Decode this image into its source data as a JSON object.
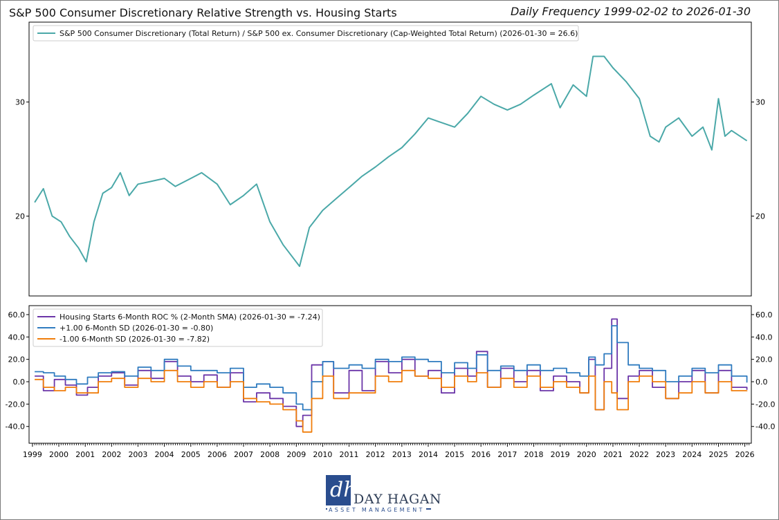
{
  "header": {
    "title": "S&P 500 Consumer Discretionary Relative Strength vs. Housing Starts",
    "subtitle": "Daily Frequency 1999-02-02 to 2026-01-30"
  },
  "logo": {
    "name": "DAY HAGAN",
    "tagline": "ASSET MANAGEMENT",
    "mark": "dh"
  },
  "chart_data": [
    {
      "type": "line",
      "xlim": [
        "1998-11-15",
        "2026-04-01"
      ],
      "ylim": [
        13,
        37
      ],
      "yticks": [
        20,
        30
      ],
      "ytick_labels": [
        "20",
        "30"
      ],
      "y_axis_both_sides": true,
      "grid": false,
      "legend_position": "upper-left",
      "series": [
        {
          "name": "S&P 500 Consumer Discretionary (Total Return) / S&P 500 ex. Consumer Discretionary (Cap-Weighted Total Return) (2026-01-30 = 26.6)",
          "color": "#4aa8a8",
          "x": [
            "1999-02-01",
            "1999-06-01",
            "1999-10-01",
            "2000-02-01",
            "2000-06-01",
            "2000-10-01",
            "2001-01-15",
            "2001-05-01",
            "2001-09-01",
            "2002-01-01",
            "2002-05-01",
            "2002-09-01",
            "2003-01-01",
            "2003-06-01",
            "2004-01-01",
            "2004-06-01",
            "2005-01-01",
            "2005-06-01",
            "2006-01-01",
            "2006-07-01",
            "2007-01-01",
            "2007-07-01",
            "2008-01-01",
            "2008-07-01",
            "2009-02-15",
            "2009-07-01",
            "2010-01-01",
            "2010-07-01",
            "2011-01-01",
            "2011-07-01",
            "2012-01-01",
            "2012-07-01",
            "2013-01-01",
            "2013-07-01",
            "2014-01-01",
            "2014-07-01",
            "2015-01-01",
            "2015-07-01",
            "2016-01-01",
            "2016-07-01",
            "2017-01-01",
            "2017-07-01",
            "2018-01-01",
            "2018-09-01",
            "2019-01-01",
            "2019-07-01",
            "2020-01-01",
            "2020-04-01",
            "2020-09-01",
            "2021-01-01",
            "2021-07-01",
            "2022-01-01",
            "2022-06-01",
            "2022-10-01",
            "2023-01-01",
            "2023-07-01",
            "2024-01-01",
            "2024-06-01",
            "2024-10-01",
            "2025-01-01",
            "2025-04-01",
            "2025-07-01",
            "2026-01-30"
          ],
          "values": [
            21.2,
            22.4,
            20.0,
            19.5,
            18.2,
            17.2,
            16.0,
            19.5,
            22.0,
            22.5,
            23.8,
            21.8,
            22.8,
            23.0,
            23.3,
            22.6,
            23.3,
            23.8,
            22.8,
            21.0,
            21.8,
            22.8,
            19.5,
            17.5,
            15.6,
            19.0,
            20.5,
            21.5,
            22.5,
            23.5,
            24.3,
            25.2,
            26.0,
            27.2,
            28.6,
            28.2,
            27.8,
            29.0,
            30.5,
            29.8,
            29.3,
            29.8,
            30.6,
            31.6,
            29.5,
            31.5,
            30.5,
            34.0,
            34.0,
            33.0,
            31.8,
            30.3,
            27.0,
            26.5,
            27.8,
            28.6,
            27.0,
            27.8,
            25.8,
            30.3,
            27.0,
            27.5,
            26.6
          ]
        }
      ]
    },
    {
      "type": "line",
      "xlim": [
        "1998-11-15",
        "2026-04-01"
      ],
      "ylim": [
        -55,
        68
      ],
      "yticks": [
        -40,
        -20,
        0,
        20,
        40,
        60
      ],
      "ytick_labels": [
        "-40.0",
        "-20.0",
        "0.0",
        "20.0",
        "40.0",
        "60.0"
      ],
      "y_axis_both_sides": true,
      "grid": false,
      "legend_position": "upper-left",
      "x_tick_labels": [
        "1999",
        "2000",
        "2001",
        "2002",
        "2003",
        "2004",
        "2005",
        "2006",
        "2007",
        "2008",
        "2009",
        "2010",
        "2011",
        "2012",
        "2013",
        "2014",
        "2015",
        "2016",
        "2017",
        "2018",
        "2019",
        "2020",
        "2021",
        "2022",
        "2023",
        "2024",
        "2025",
        "2026"
      ],
      "series": [
        {
          "name": "Housing Starts 6-Month ROC % (2-Month SMA) (2026-01-30 = -7.24)",
          "color": "#6b35a8",
          "x": [
            "1999-02-01",
            "1999-06-01",
            "1999-11-01",
            "2000-04-01",
            "2000-09-01",
            "2001-02-01",
            "2001-07-01",
            "2002-01-01",
            "2002-07-01",
            "2003-01-01",
            "2003-07-01",
            "2004-01-01",
            "2004-07-01",
            "2005-01-01",
            "2005-07-01",
            "2006-01-01",
            "2006-07-01",
            "2007-01-01",
            "2007-07-01",
            "2008-01-01",
            "2008-07-01",
            "2009-01-01",
            "2009-04-01",
            "2009-08-01",
            "2010-01-01",
            "2010-06-01",
            "2011-01-01",
            "2011-07-01",
            "2012-01-01",
            "2012-07-01",
            "2013-01-01",
            "2013-07-01",
            "2014-01-01",
            "2014-07-01",
            "2015-01-01",
            "2015-07-01",
            "2015-11-01",
            "2016-04-01",
            "2016-10-01",
            "2017-04-01",
            "2017-10-01",
            "2018-04-01",
            "2018-10-01",
            "2019-04-01",
            "2019-10-01",
            "2020-02-01",
            "2020-05-01",
            "2020-09-01",
            "2020-12-15",
            "2021-03-01",
            "2021-08-01",
            "2022-01-01",
            "2022-07-01",
            "2023-01-01",
            "2023-07-01",
            "2024-01-01",
            "2024-07-01",
            "2025-01-01",
            "2025-07-01",
            "2026-01-30"
          ],
          "values": [
            5,
            -8,
            2,
            -3,
            -12,
            -5,
            5,
            8,
            -3,
            10,
            3,
            18,
            5,
            0,
            6,
            -5,
            8,
            -18,
            -10,
            -15,
            -22,
            -40,
            -30,
            15,
            18,
            -10,
            10,
            -8,
            18,
            8,
            20,
            5,
            10,
            -10,
            12,
            5,
            27,
            -5,
            12,
            0,
            10,
            -8,
            5,
            0,
            -10,
            20,
            -25,
            12,
            56,
            -15,
            5,
            10,
            -5,
            -15,
            0,
            10,
            -10,
            10,
            -5,
            -7.24
          ]
        },
        {
          "name": "+1.00 6-Month SD (2026-01-30 = -0.80)",
          "color": "#2f7bbf",
          "x": [
            "1999-02-01",
            "1999-06-01",
            "1999-11-01",
            "2000-04-01",
            "2000-09-01",
            "2001-02-01",
            "2001-07-01",
            "2002-01-01",
            "2002-07-01",
            "2003-01-01",
            "2003-07-01",
            "2004-01-01",
            "2004-07-01",
            "2005-01-01",
            "2005-07-01",
            "2006-01-01",
            "2006-07-01",
            "2007-01-01",
            "2007-07-01",
            "2008-01-01",
            "2008-07-01",
            "2009-01-01",
            "2009-04-01",
            "2009-08-01",
            "2010-01-01",
            "2010-06-01",
            "2011-01-01",
            "2011-07-01",
            "2012-01-01",
            "2012-07-01",
            "2013-01-01",
            "2013-07-01",
            "2014-01-01",
            "2014-07-01",
            "2015-01-01",
            "2015-07-01",
            "2015-11-01",
            "2016-04-01",
            "2016-10-01",
            "2017-04-01",
            "2017-10-01",
            "2018-04-01",
            "2018-10-01",
            "2019-04-01",
            "2019-10-01",
            "2020-02-01",
            "2020-05-01",
            "2020-09-01",
            "2020-12-15",
            "2021-03-01",
            "2021-08-01",
            "2022-01-01",
            "2022-07-01",
            "2023-01-01",
            "2023-07-01",
            "2024-01-01",
            "2024-07-01",
            "2025-01-01",
            "2025-07-01",
            "2026-01-30"
          ],
          "values": [
            9,
            8,
            5,
            2,
            -2,
            4,
            8,
            9,
            5,
            13,
            10,
            20,
            14,
            10,
            10,
            8,
            12,
            -5,
            -2,
            -5,
            -10,
            -20,
            -25,
            0,
            18,
            12,
            15,
            12,
            20,
            18,
            22,
            20,
            18,
            8,
            17,
            12,
            24,
            10,
            14,
            10,
            15,
            10,
            12,
            8,
            5,
            22,
            15,
            25,
            50,
            35,
            15,
            12,
            10,
            0,
            5,
            12,
            8,
            15,
            5,
            -0.8
          ]
        },
        {
          "name": "-1.00 6-Month SD (2026-01-30 = -7.82)",
          "color": "#f07d0a",
          "x": [
            "1999-02-01",
            "1999-06-01",
            "1999-11-01",
            "2000-04-01",
            "2000-09-01",
            "2001-02-01",
            "2001-07-01",
            "2002-01-01",
            "2002-07-01",
            "2003-01-01",
            "2003-07-01",
            "2004-01-01",
            "2004-07-01",
            "2005-01-01",
            "2005-07-01",
            "2006-01-01",
            "2006-07-01",
            "2007-01-01",
            "2007-07-01",
            "2008-01-01",
            "2008-07-01",
            "2009-01-01",
            "2009-04-01",
            "2009-08-01",
            "2010-01-01",
            "2010-06-01",
            "2011-01-01",
            "2011-07-01",
            "2012-01-01",
            "2012-07-01",
            "2013-01-01",
            "2013-07-01",
            "2014-01-01",
            "2014-07-01",
            "2015-01-01",
            "2015-07-01",
            "2015-11-01",
            "2016-04-01",
            "2016-10-01",
            "2017-04-01",
            "2017-10-01",
            "2018-04-01",
            "2018-10-01",
            "2019-04-01",
            "2019-10-01",
            "2020-02-01",
            "2020-05-01",
            "2020-09-01",
            "2020-12-15",
            "2021-03-01",
            "2021-08-01",
            "2022-01-01",
            "2022-07-01",
            "2023-01-01",
            "2023-07-01",
            "2024-01-01",
            "2024-07-01",
            "2025-01-01",
            "2025-07-01",
            "2026-01-30"
          ],
          "values": [
            2,
            -5,
            -8,
            -5,
            -10,
            -10,
            0,
            3,
            -5,
            3,
            0,
            10,
            0,
            -5,
            0,
            -5,
            0,
            -15,
            -18,
            -20,
            -25,
            -35,
            -45,
            -15,
            5,
            -15,
            -10,
            -10,
            5,
            0,
            10,
            5,
            3,
            -5,
            5,
            0,
            8,
            -5,
            3,
            -5,
            5,
            -5,
            0,
            -5,
            -10,
            5,
            -25,
            0,
            -10,
            -25,
            0,
            5,
            0,
            -15,
            -10,
            0,
            -10,
            0,
            -8,
            -7.82
          ]
        }
      ]
    }
  ]
}
